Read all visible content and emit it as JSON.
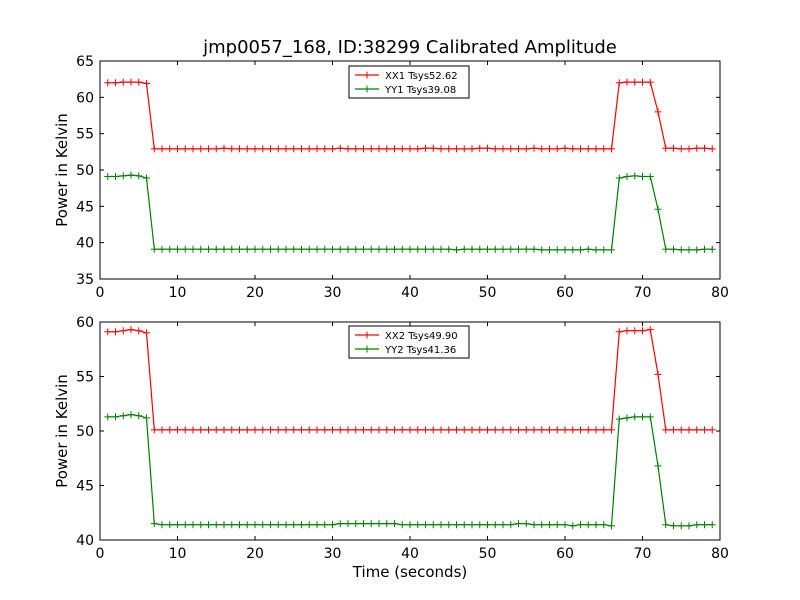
{
  "title": "jmp0057_168, ID:38299 Calibrated Amplitude",
  "colors": {
    "red": "#ff0000",
    "green": "#008000"
  },
  "chart_data": [
    {
      "type": "line",
      "title": "jmp0057_168, ID:38299 Calibrated Amplitude",
      "xlabel": "",
      "ylabel": "Power in Kelvin",
      "xlim": [
        0,
        80
      ],
      "ylim": [
        35,
        65
      ],
      "xticks": [
        0,
        10,
        20,
        30,
        40,
        50,
        60,
        70,
        80
      ],
      "yticks": [
        35,
        40,
        45,
        50,
        55,
        60,
        65
      ],
      "grid": false,
      "legend_position": "top-center",
      "x": [
        1,
        2,
        3,
        4,
        5,
        6,
        7,
        8,
        9,
        10,
        11,
        12,
        13,
        14,
        15,
        16,
        17,
        18,
        19,
        20,
        21,
        22,
        23,
        24,
        25,
        26,
        27,
        28,
        29,
        30,
        31,
        32,
        33,
        34,
        35,
        36,
        37,
        38,
        39,
        40,
        41,
        42,
        43,
        44,
        45,
        46,
        47,
        48,
        49,
        50,
        51,
        52,
        53,
        54,
        55,
        56,
        57,
        58,
        59,
        60,
        61,
        62,
        63,
        64,
        65,
        66,
        67,
        68,
        69,
        70,
        71,
        72,
        73,
        74,
        75,
        76,
        77,
        78,
        79
      ],
      "series": [
        {
          "name": "XX1 Tsys52.62",
          "color": "#ff0000",
          "values": [
            62,
            62,
            62.1,
            62.1,
            62.1,
            61.9,
            52.9,
            52.9,
            52.9,
            52.9,
            52.9,
            52.9,
            52.9,
            52.9,
            52.9,
            53,
            52.9,
            52.9,
            52.9,
            52.9,
            52.9,
            52.9,
            52.9,
            52.9,
            52.9,
            52.9,
            52.9,
            52.9,
            52.9,
            52.9,
            53,
            52.9,
            52.9,
            52.9,
            52.9,
            52.9,
            52.9,
            52.9,
            52.9,
            52.9,
            52.9,
            53,
            53,
            52.9,
            52.9,
            52.9,
            52.9,
            52.9,
            53,
            53,
            52.9,
            52.9,
            52.9,
            52.9,
            52.9,
            53,
            52.9,
            52.9,
            52.9,
            53,
            52.9,
            52.9,
            52.9,
            52.9,
            52.9,
            52.9,
            62,
            62.1,
            62.1,
            62.1,
            62.1,
            58,
            53,
            53,
            52.9,
            52.9,
            53,
            53,
            52.9
          ]
        },
        {
          "name": "YY1 Tsys39.08",
          "color": "#008000",
          "values": [
            49.1,
            49.1,
            49.2,
            49.3,
            49.2,
            48.9,
            39.1,
            39.1,
            39.1,
            39.1,
            39.1,
            39.1,
            39.1,
            39.1,
            39.1,
            39.1,
            39.1,
            39.1,
            39.1,
            39.1,
            39.1,
            39.1,
            39.1,
            39.1,
            39.1,
            39.1,
            39.1,
            39.1,
            39.1,
            39.1,
            39.1,
            39.1,
            39.1,
            39.1,
            39.1,
            39.1,
            39.1,
            39.1,
            39.1,
            39.1,
            39.1,
            39.1,
            39.1,
            39.1,
            39.1,
            39,
            39.1,
            39.1,
            39.1,
            39.1,
            39.1,
            39.1,
            39.1,
            39.1,
            39.1,
            39.1,
            39,
            39,
            39,
            39,
            39,
            39,
            39.1,
            39,
            39,
            39,
            48.9,
            49.1,
            49.2,
            49.1,
            49.1,
            44.6,
            39.1,
            39.1,
            39,
            39,
            39,
            39.1,
            39.1
          ]
        }
      ]
    },
    {
      "type": "line",
      "title": "",
      "xlabel": "Time (seconds)",
      "ylabel": "Power in Kelvin",
      "xlim": [
        0,
        80
      ],
      "ylim": [
        40,
        60
      ],
      "xticks": [
        0,
        10,
        20,
        30,
        40,
        50,
        60,
        70,
        80
      ],
      "yticks": [
        40,
        45,
        50,
        55,
        60
      ],
      "grid": false,
      "legend_position": "top-center",
      "x": [
        1,
        2,
        3,
        4,
        5,
        6,
        7,
        8,
        9,
        10,
        11,
        12,
        13,
        14,
        15,
        16,
        17,
        18,
        19,
        20,
        21,
        22,
        23,
        24,
        25,
        26,
        27,
        28,
        29,
        30,
        31,
        32,
        33,
        34,
        35,
        36,
        37,
        38,
        39,
        40,
        41,
        42,
        43,
        44,
        45,
        46,
        47,
        48,
        49,
        50,
        51,
        52,
        53,
        54,
        55,
        56,
        57,
        58,
        59,
        60,
        61,
        62,
        63,
        64,
        65,
        66,
        67,
        68,
        69,
        70,
        71,
        72,
        73,
        74,
        75,
        76,
        77,
        78,
        79
      ],
      "series": [
        {
          "name": "XX2 Tsys49.90",
          "color": "#ff0000",
          "values": [
            59.1,
            59.1,
            59.2,
            59.3,
            59.2,
            59,
            50.1,
            50.1,
            50.1,
            50.1,
            50.1,
            50.1,
            50.1,
            50.1,
            50.1,
            50.1,
            50.1,
            50.1,
            50.1,
            50.1,
            50.1,
            50.1,
            50.1,
            50.1,
            50.1,
            50.1,
            50.1,
            50.1,
            50.1,
            50.1,
            50.1,
            50.1,
            50.1,
            50.1,
            50.1,
            50.1,
            50.1,
            50.1,
            50.1,
            50.1,
            50.1,
            50.1,
            50.1,
            50.1,
            50.1,
            50.1,
            50.1,
            50.1,
            50.1,
            50.1,
            50.1,
            50.1,
            50.1,
            50.1,
            50.1,
            50.1,
            50.1,
            50.1,
            50.1,
            50.1,
            50.1,
            50.1,
            50.1,
            50.1,
            50.1,
            50.1,
            59.1,
            59.2,
            59.2,
            59.2,
            59.3,
            55.2,
            50.1,
            50.1,
            50.1,
            50.1,
            50.1,
            50.1,
            50.1
          ]
        },
        {
          "name": "YY2 Tsys41.36",
          "color": "#008000",
          "values": [
            51.3,
            51.3,
            51.4,
            51.5,
            51.4,
            51.2,
            41.5,
            41.4,
            41.4,
            41.4,
            41.4,
            41.4,
            41.4,
            41.4,
            41.4,
            41.4,
            41.4,
            41.4,
            41.4,
            41.4,
            41.4,
            41.4,
            41.4,
            41.4,
            41.4,
            41.4,
            41.4,
            41.4,
            41.4,
            41.4,
            41.5,
            41.5,
            41.5,
            41.5,
            41.5,
            41.5,
            41.5,
            41.5,
            41.4,
            41.4,
            41.4,
            41.4,
            41.4,
            41.4,
            41.4,
            41.4,
            41.4,
            41.4,
            41.4,
            41.4,
            41.4,
            41.4,
            41.4,
            41.5,
            41.5,
            41.4,
            41.4,
            41.4,
            41.4,
            41.4,
            41.3,
            41.4,
            41.4,
            41.4,
            41.4,
            41.3,
            51.1,
            51.2,
            51.3,
            51.3,
            51.3,
            46.8,
            41.4,
            41.3,
            41.3,
            41.3,
            41.4,
            41.4,
            41.4
          ]
        }
      ]
    }
  ]
}
